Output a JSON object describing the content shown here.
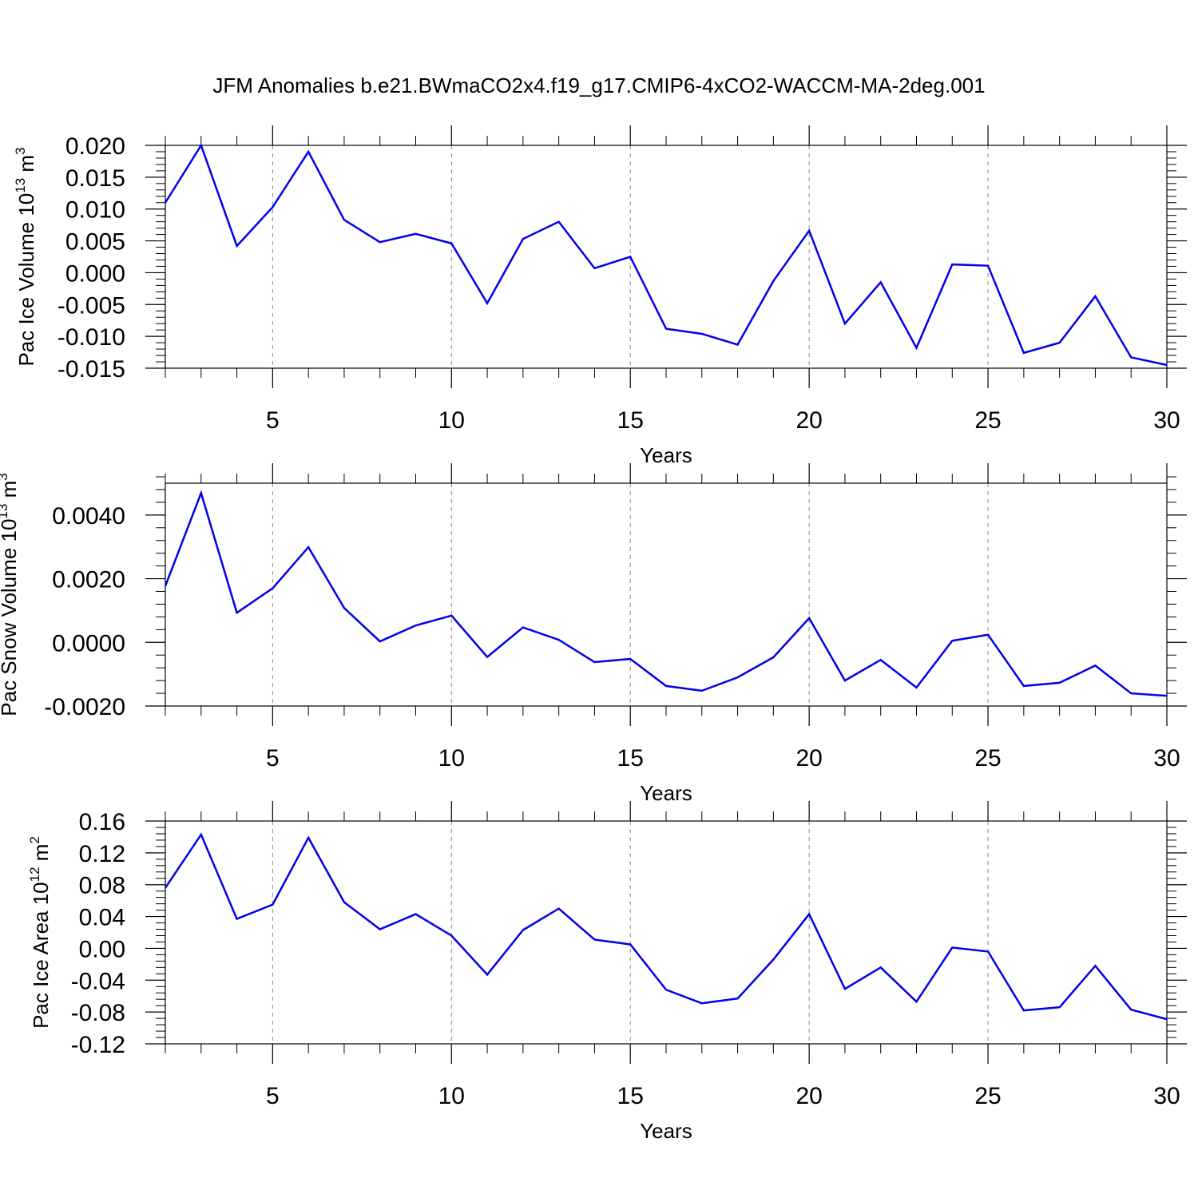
{
  "title": "JFM Anomalies b.e21.BWmaCO2x4.f19_g17.CMIP6-4xCO2-WACCM-MA-2deg.001",
  "colors": {
    "series": "#0000ee",
    "grid": "#888888",
    "axis": "#000000"
  },
  "chart_data": [
    {
      "type": "line",
      "title": "",
      "xlabel": "Years",
      "ylabel": {
        "prefix": "Pac Ice Volume 10",
        "exponent": "13",
        "unit": " m",
        "unit_exponent": "3"
      },
      "xlim": [
        2,
        30
      ],
      "ylim": [
        -0.015,
        0.02
      ],
      "xticks": [
        5,
        10,
        15,
        20,
        25,
        30
      ],
      "xtick_labels": [
        "5",
        "10",
        "15",
        "20",
        "25",
        "30"
      ],
      "yticks": [
        -0.015,
        -0.01,
        -0.005,
        0.0,
        0.005,
        0.01,
        0.015,
        0.02
      ],
      "ytick_labels": [
        "-0.015",
        "-0.010",
        "-0.005",
        "0.000",
        "0.005",
        "0.010",
        "0.015",
        "0.020"
      ],
      "grid": "vertical dashed",
      "x": [
        2,
        3,
        4,
        5,
        6,
        7,
        8,
        9,
        10,
        11,
        12,
        13,
        14,
        15,
        16,
        17,
        18,
        19,
        20,
        21,
        22,
        23,
        24,
        25,
        26,
        27,
        28,
        29,
        30
      ],
      "series": [
        {
          "values": [
            0.011,
            0.02,
            0.0042,
            0.0103,
            0.019,
            0.0083,
            0.0048,
            0.0061,
            0.0046,
            -0.0048,
            0.0053,
            0.008,
            0.0007,
            0.0025,
            -0.0088,
            -0.0096,
            -0.0113,
            -0.0013,
            0.0066,
            -0.008,
            -0.0015,
            -0.0118,
            0.0013,
            0.0011,
            -0.0126,
            -0.011,
            -0.0037,
            -0.0133,
            -0.0145
          ]
        }
      ]
    },
    {
      "type": "line",
      "title": "",
      "xlabel": "Years",
      "ylabel": {
        "prefix": "Pac Snow Volume 10",
        "exponent": "13",
        "unit": " m",
        "unit_exponent": "3"
      },
      "xlim": [
        2,
        30
      ],
      "ylim": [
        -0.002,
        0.005
      ],
      "xticks": [
        5,
        10,
        15,
        20,
        25,
        30
      ],
      "xtick_labels": [
        "5",
        "10",
        "15",
        "20",
        "25",
        "30"
      ],
      "yticks": [
        -0.002,
        0.0,
        0.002,
        0.004
      ],
      "ytick_labels": [
        "-0.0020",
        "0.0000",
        "0.0020",
        "0.0040"
      ],
      "grid": "vertical dashed",
      "x": [
        2,
        3,
        4,
        5,
        6,
        7,
        8,
        9,
        10,
        11,
        12,
        13,
        14,
        15,
        16,
        17,
        18,
        19,
        20,
        21,
        22,
        23,
        24,
        25,
        26,
        27,
        28,
        29,
        30
      ],
      "series": [
        {
          "values": [
            0.00177,
            0.00469,
            0.00093,
            0.0017,
            0.00299,
            0.00108,
            3e-05,
            0.00053,
            0.00084,
            -0.00046,
            0.00047,
            8e-05,
            -0.00062,
            -0.00052,
            -0.00137,
            -0.00152,
            -0.0011,
            -0.00047,
            0.00076,
            -0.0012,
            -0.00055,
            -0.00142,
            5e-05,
            0.00024,
            -0.00137,
            -0.00127,
            -0.00073,
            -0.0016,
            -0.00168
          ]
        }
      ]
    },
    {
      "type": "line",
      "title": "",
      "xlabel": "Years",
      "ylabel": {
        "prefix": "Pac Ice Area 10",
        "exponent": "12",
        "unit": " m",
        "unit_exponent": "2"
      },
      "xlim": [
        2,
        30
      ],
      "ylim": [
        -0.12,
        0.16
      ],
      "xticks": [
        5,
        10,
        15,
        20,
        25,
        30
      ],
      "xtick_labels": [
        "5",
        "10",
        "15",
        "20",
        "25",
        "30"
      ],
      "yticks": [
        -0.12,
        -0.08,
        -0.04,
        0.0,
        0.04,
        0.08,
        0.12,
        0.16
      ],
      "ytick_labels": [
        "-0.12",
        "-0.08",
        "-0.04",
        "0.00",
        "0.04",
        "0.08",
        "0.12",
        "0.16"
      ],
      "grid": "vertical dashed",
      "x": [
        2,
        3,
        4,
        5,
        6,
        7,
        8,
        9,
        10,
        11,
        12,
        13,
        14,
        15,
        16,
        17,
        18,
        19,
        20,
        21,
        22,
        23,
        24,
        25,
        26,
        27,
        28,
        29,
        30
      ],
      "series": [
        {
          "values": [
            0.076,
            0.143,
            0.037,
            0.055,
            0.139,
            0.058,
            0.024,
            0.043,
            0.016,
            -0.033,
            0.023,
            0.05,
            0.011,
            0.005,
            -0.052,
            -0.069,
            -0.063,
            -0.014,
            0.043,
            -0.051,
            -0.024,
            -0.067,
            0.001,
            -0.004,
            -0.078,
            -0.074,
            -0.022,
            -0.077,
            -0.089
          ]
        }
      ]
    }
  ]
}
